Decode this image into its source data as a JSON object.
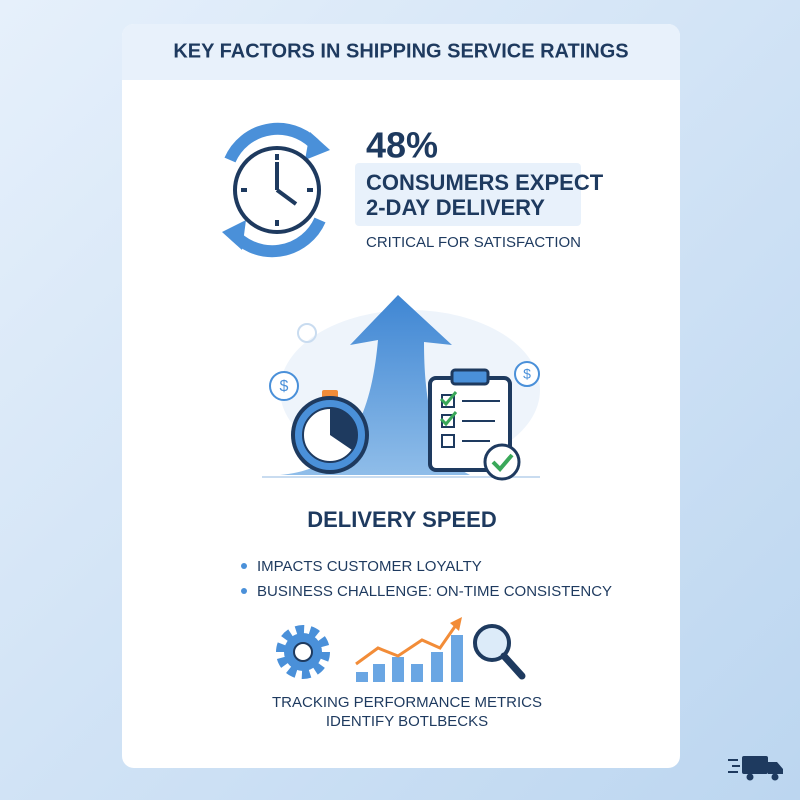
{
  "header": {
    "title": "KEY FACTORS IN SHIPPING SERVICE RATINGS"
  },
  "stat": {
    "value": "48%",
    "lines": [
      "CONSUMERS EXPECT",
      "2-DAY DELIVERY"
    ],
    "note": "CRITICAL FOR SATISFACTION"
  },
  "illustration": {
    "currency_symbol": "$"
  },
  "section": {
    "title": "DELIVERY SPEED",
    "bullets": [
      "IMPACTS CUSTOMER LOYALTY",
      "BUSINESS CHALLENGE: ON-TIME CONSISTENCY"
    ]
  },
  "footer": {
    "lines": [
      "TRACKING PERFORMANCE METRICS",
      "IDENTIFY BOTLBECKS"
    ]
  }
}
